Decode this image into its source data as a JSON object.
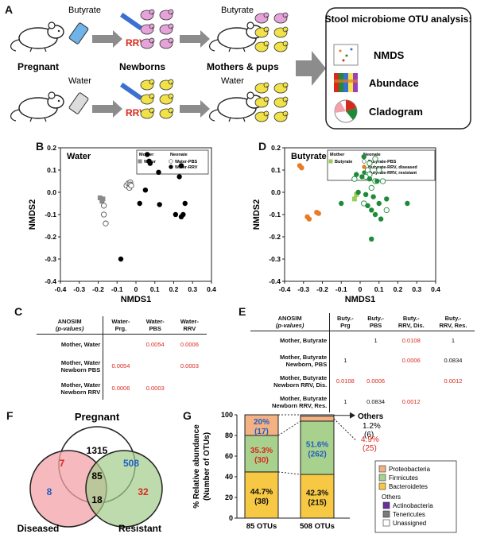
{
  "labels": {
    "A": "A",
    "B": "B",
    "C": "C",
    "D": "D",
    "E": "E",
    "F": "F",
    "G": "G"
  },
  "panelA": {
    "top_treatment": "Butyrate",
    "bottom_treatment": "Water",
    "rrv": "RRV",
    "stage1": "Pregnant",
    "stage2": "Newborns",
    "stage3": "Mothers & pups",
    "box_title": "Stool microbiome OTU analysis:",
    "box_items": [
      "NMDS",
      "Abundace",
      "Cladogram"
    ]
  },
  "panelB": {
    "title": "Water",
    "legend_mother": "Mother",
    "legend_neonate": "Neonate",
    "legend_items": [
      "Water",
      "Water-PBS",
      "Water-RRV"
    ],
    "xlabel": "NMDS1",
    "ylabel": "NMDS2",
    "xticks": [
      "-0.4",
      "-0.3",
      "-0.2",
      "-0.1",
      "0",
      "0.1",
      "0.2",
      "0.3",
      "0.4"
    ],
    "yticks": [
      "0.2",
      "0.1",
      "0.0",
      "-0.1",
      "-0.2",
      "-0.3",
      "-0.4"
    ]
  },
  "panelD": {
    "title": "Butyrate",
    "legend_mother": "Mother",
    "legend_neonate": "Neonate",
    "legend_items": [
      "Butyrate",
      "Butyrate-PBS",
      "Butyrate-RRV, diseased",
      "Butyrate-RRV, resistant"
    ],
    "xlabel": "NMDS1",
    "ylabel": "NMDS2",
    "xticks": [
      "-0.4",
      "-0.3",
      "-0.2",
      "-0.1",
      "0",
      "0.1",
      "0.2",
      "0.3",
      "0.4"
    ],
    "yticks": [
      "0.2",
      "0.1",
      "0.0",
      "-0.1",
      "-0.2",
      "-0.3",
      "-0.4"
    ]
  },
  "tableC": {
    "corner": [
      "ANOSIM",
      "(p-values)"
    ],
    "cols": [
      [
        "Water-",
        "Prg."
      ],
      [
        "Water-",
        "PBS"
      ],
      [
        "Water-",
        "RRV"
      ]
    ],
    "rows": [
      {
        "h": [
          "Mother, Water"
        ],
        "v": [
          "",
          "0.0054",
          "0.0006"
        ]
      },
      {
        "h": [
          "Mother, Water",
          "Newborn PBS"
        ],
        "v": [
          "0.0054",
          "",
          "0.0003"
        ]
      },
      {
        "h": [
          "Mother, Water",
          "Newborn RRV"
        ],
        "v": [
          "0.0006",
          "0.0003",
          ""
        ]
      }
    ]
  },
  "tableE": {
    "corner": [
      "ANOSIM",
      "(p-values)"
    ],
    "cols": [
      [
        "Buty.-",
        "Prg"
      ],
      [
        "Buty.-",
        "PBS"
      ],
      [
        "Buty.-",
        "RRV, Dis."
      ],
      [
        "Buty.-",
        "RRV, Res."
      ]
    ],
    "rows": [
      {
        "h": [
          "Mother, Butyrate"
        ],
        "v": [
          "",
          "1",
          "0.0108",
          "1"
        ]
      },
      {
        "h": [
          "Mother, Butyrate",
          "Newborn, PBS"
        ],
        "v": [
          "1",
          "",
          "0.0006",
          "0.0834"
        ]
      },
      {
        "h": [
          "Mother, Butyrate",
          "Newborn RRV, Dis."
        ],
        "v": [
          "0.0108",
          "0.0006",
          "",
          "0.0012"
        ]
      },
      {
        "h": [
          "Mother, Butyrate",
          "Newborn RRV, Res."
        ],
        "v": [
          "1",
          "0.0834",
          "0.0012",
          ""
        ]
      }
    ]
  },
  "panelF": {
    "title": "Pregnant",
    "n_pregnant": "1315",
    "n_preg_dis": "7",
    "n_preg_res": "508",
    "n_all": "85",
    "n_dis": "8",
    "n_dis_res": "18",
    "n_res": "32",
    "label_dis": "Diseased",
    "label_res": "Resistant"
  },
  "panelG": {
    "ylabel": "% Relative abundance",
    "ylabel2": "(Number of OTUs)",
    "yticks": [
      "100",
      "80",
      "60",
      "40",
      "20",
      "0"
    ],
    "xcats": [
      "85 OTUs",
      "508 OTUs"
    ],
    "others_label": "Others",
    "others_vals": [
      "1.2%",
      "(6)",
      "4.9%",
      "(25)"
    ],
    "legend": [
      "Proteobacteria",
      "Firmicutes",
      "Bacteroidetes"
    ],
    "legend_others_title": "Others",
    "legend_others": [
      "Actinobacteria",
      "Tenericutes",
      "Unassigned"
    ]
  },
  "chart_data": [
    {
      "type": "scatter",
      "title": "Water",
      "xlabel": "NMDS1",
      "ylabel": "NMDS2",
      "xlim": [
        -0.4,
        0.4
      ],
      "ylim": [
        -0.4,
        0.2
      ],
      "series": [
        {
          "name": "Water",
          "color": "#8a8a8a",
          "marker": "square",
          "points": [
            [
              -0.19,
              -0.025
            ],
            [
              -0.18,
              -0.04
            ],
            [
              -0.175,
              -0.03
            ]
          ]
        },
        {
          "name": "Water-PBS",
          "color": "#ffffff",
          "marker": "circle-open",
          "points": [
            [
              -0.17,
              -0.06
            ],
            [
              -0.16,
              -0.14
            ],
            [
              -0.17,
              -0.1
            ],
            [
              -0.05,
              0.03
            ],
            [
              -0.04,
              0.04
            ],
            [
              -0.03,
              0.045
            ],
            [
              -0.035,
              0.02
            ],
            [
              -0.03,
              0.035
            ],
            [
              -0.025,
              0.03
            ]
          ]
        },
        {
          "name": "Water-RRV",
          "color": "#000000",
          "marker": "circle-filled",
          "points": [
            [
              0.06,
              0.17
            ],
            [
              0.07,
              0.14
            ],
            [
              0.075,
              0.13
            ],
            [
              0.12,
              0.09
            ],
            [
              0.24,
              0.12
            ],
            [
              0.23,
              0.07
            ],
            [
              0.05,
              0.01
            ],
            [
              0.02,
              -0.05
            ],
            [
              0.125,
              -0.055
            ],
            [
              0.26,
              -0.05
            ],
            [
              0.21,
              -0.1
            ],
            [
              0.24,
              -0.11
            ],
            [
              0.25,
              -0.1
            ],
            [
              -0.08,
              -0.3
            ]
          ]
        }
      ]
    },
    {
      "type": "scatter",
      "title": "Butyrate",
      "xlabel": "NMDS1",
      "ylabel": "NMDS2",
      "xlim": [
        -0.4,
        0.4
      ],
      "ylim": [
        -0.4,
        0.2
      ],
      "series": [
        {
          "name": "Butyrate",
          "color": "#9acd5a",
          "marker": "square",
          "points": [
            [
              -0.02,
              -0.01
            ],
            [
              -0.03,
              -0.03
            ]
          ]
        },
        {
          "name": "Butyrate-PBS",
          "color": "#ffffff",
          "marker": "circle-open",
          "points": [
            [
              0.04,
              0.1
            ],
            [
              0.05,
              0.13
            ],
            [
              0.08,
              0.15
            ],
            [
              0.1,
              0.1
            ],
            [
              0.05,
              0.08
            ],
            [
              0.03,
              0.07
            ],
            [
              0.08,
              0.05
            ],
            [
              0.12,
              0.05
            ],
            [
              0.06,
              0.02
            ],
            [
              -0.03,
              0.06
            ],
            [
              0.14,
              -0.08
            ],
            [
              0.02,
              -0.05
            ]
          ]
        },
        {
          "name": "Butyrate-RRV, diseased",
          "color": "#e87b24",
          "marker": "circle-filled",
          "points": [
            [
              -0.32,
              0.12
            ],
            [
              -0.31,
              0.11
            ],
            [
              -0.23,
              -0.09
            ],
            [
              -0.22,
              -0.095
            ],
            [
              -0.28,
              -0.11
            ],
            [
              -0.27,
              -0.12
            ]
          ]
        },
        {
          "name": "Butyrate-RRV, resistant",
          "color": "#1e8a3a",
          "marker": "circle-filled",
          "points": [
            [
              0.02,
              0.16
            ],
            [
              -0.02,
              0.08
            ],
            [
              0.01,
              0.07
            ],
            [
              0.05,
              0.06
            ],
            [
              0.09,
              0.05
            ],
            [
              -0.01,
              0.0
            ],
            [
              0.03,
              -0.01
            ],
            [
              0.07,
              -0.02
            ],
            [
              0.1,
              -0.05
            ],
            [
              0.14,
              -0.03
            ],
            [
              0.04,
              -0.06
            ],
            [
              0.06,
              -0.08
            ],
            [
              0.08,
              -0.1
            ],
            [
              0.11,
              -0.12
            ],
            [
              -0.1,
              -0.05
            ],
            [
              0.25,
              -0.05
            ],
            [
              0.06,
              -0.21
            ]
          ]
        }
      ]
    },
    {
      "type": "bar",
      "stacked": true,
      "ylabel": "% Relative abundance (Number of OTUs)",
      "ylim": [
        0,
        100
      ],
      "categories": [
        "85 OTUs",
        "508 OTUs"
      ],
      "series": [
        {
          "name": "Bacteroidetes",
          "color": "#f7c843",
          "values": [
            44.7,
            42.3
          ],
          "labels": [
            [
              "44.7%",
              "(38)"
            ],
            [
              "42.3%",
              "(215)"
            ]
          ]
        },
        {
          "name": "Firmicutes",
          "color": "#a9d18e",
          "values": [
            35.3,
            51.6
          ],
          "labels": [
            [
              "35.3%",
              "(30)"
            ],
            [
              "51.6%",
              "(262)"
            ]
          ]
        },
        {
          "name": "Proteobacteria",
          "color": "#f4b183",
          "values": [
            20,
            4.9
          ],
          "labels": [
            [
              "20%",
              "(17)"
            ],
            [
              "",
              ""
            ]
          ]
        },
        {
          "name": "Others",
          "color": "#ffffff",
          "values": [
            0,
            1.2
          ]
        }
      ]
    }
  ],
  "colors": {
    "red": "#d9291c",
    "blue": "#1f5fbf",
    "pink": "#f2a2a8",
    "green": "#a3cc8c",
    "rrv": "#d9291c"
  }
}
